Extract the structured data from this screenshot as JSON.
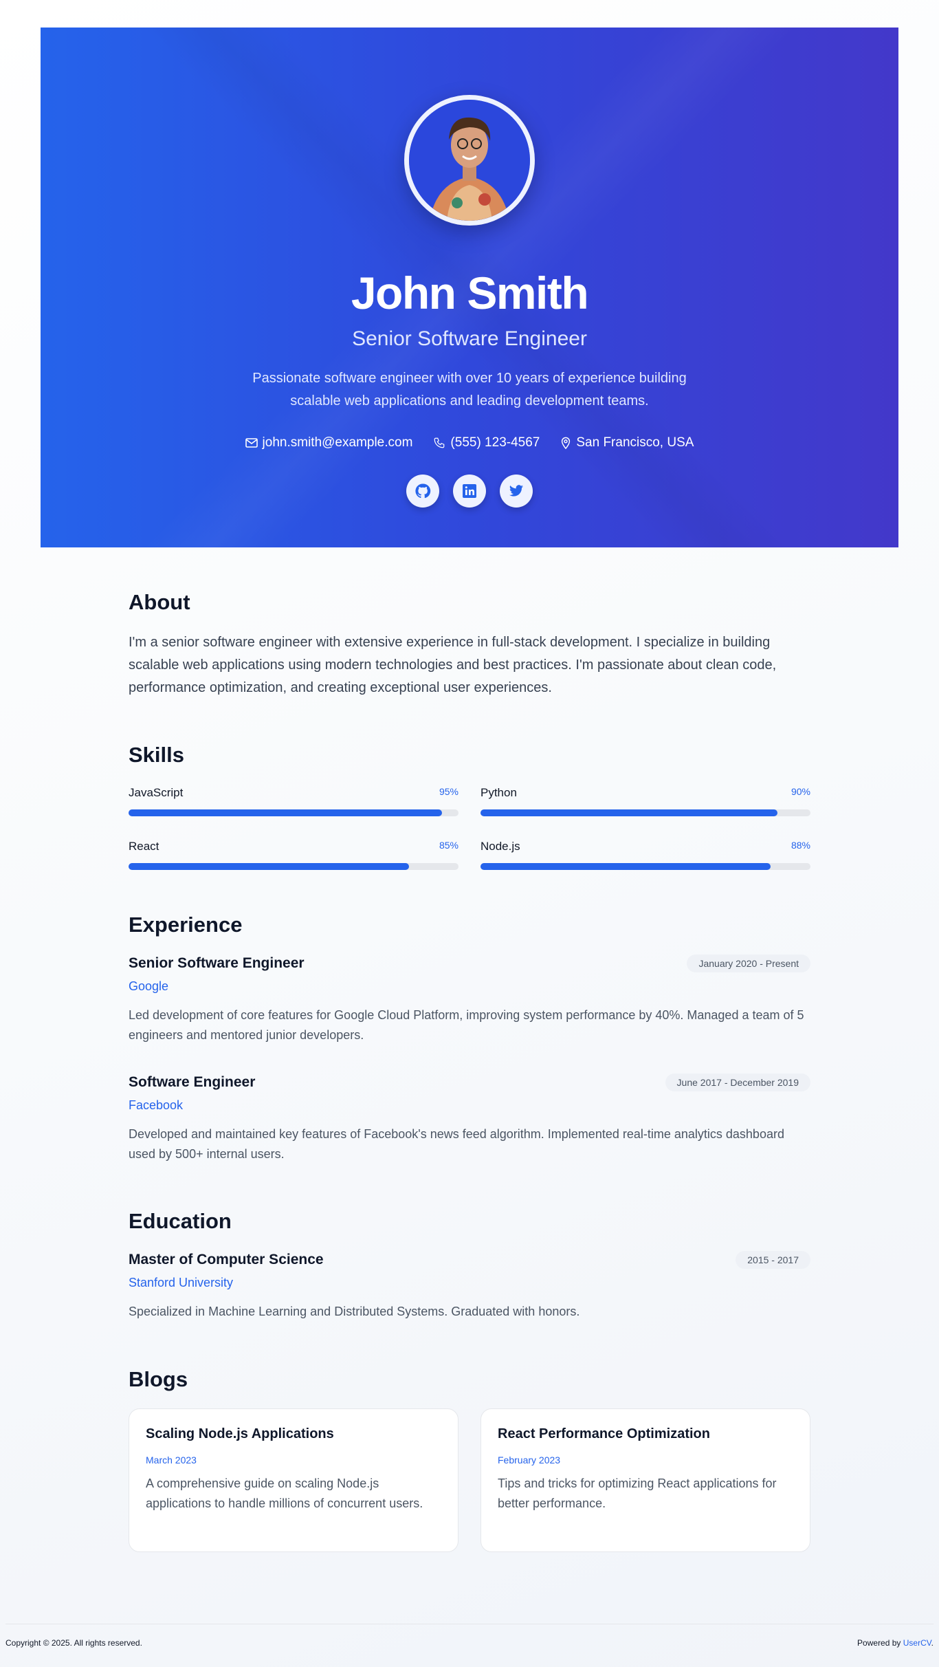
{
  "profile": {
    "name": "John Smith",
    "title": "Senior Software Engineer",
    "bio": "Passionate software engineer with over 10 years of experience building scalable web applications and leading development teams.",
    "email": "john.smith@example.com",
    "phone": "(555) 123-4567",
    "location": "San Francisco, USA",
    "socials": [
      "github-icon",
      "linkedin-icon",
      "twitter-icon"
    ]
  },
  "about": {
    "heading": "About",
    "text": "I'm a senior software engineer with extensive experience in full-stack development. I specialize in building scalable web applications using modern technologies and best practices. I'm passionate about clean code, performance optimization, and creating exceptional user experiences."
  },
  "skills": {
    "heading": "Skills",
    "items": [
      {
        "name": "JavaScript",
        "pct": "95%",
        "level": 95
      },
      {
        "name": "Python",
        "pct": "90%",
        "level": 90
      },
      {
        "name": "React",
        "pct": "85%",
        "level": 85
      },
      {
        "name": "Node.js",
        "pct": "88%",
        "level": 88
      }
    ]
  },
  "experience": {
    "heading": "Experience",
    "items": [
      {
        "role": "Senior Software Engineer",
        "company": "Google",
        "date": "January 2020 - Present",
        "desc": "Led development of core features for Google Cloud Platform, improving system performance by 40%. Managed a team of 5 engineers and mentored junior developers."
      },
      {
        "role": "Software Engineer",
        "company": "Facebook",
        "date": "June 2017 - December 2019",
        "desc": "Developed and maintained key features of Facebook's news feed algorithm. Implemented real-time analytics dashboard used by 500+ internal users."
      }
    ]
  },
  "education": {
    "heading": "Education",
    "items": [
      {
        "degree": "Master of Computer Science",
        "school": "Stanford University",
        "date": "2015 - 2017",
        "desc": "Specialized in Machine Learning and Distributed Systems. Graduated with honors."
      }
    ]
  },
  "blogs": {
    "heading": "Blogs",
    "items": [
      {
        "title": "Scaling Node.js Applications",
        "date": "March 2023",
        "desc": "A comprehensive guide on scaling Node.js applications to handle millions of concurrent users."
      },
      {
        "title": "React Performance Optimization",
        "date": "February 2023",
        "desc": "Tips and tricks for optimizing React applications for better performance."
      }
    ]
  },
  "footer": {
    "copyright": "Copyright © 2025. All rights reserved.",
    "powered_prefix": "Powered by ",
    "powered_link": "UserCV",
    "powered_suffix": "."
  },
  "colors": {
    "accent": "#2563eb",
    "hero_end": "#4338ca"
  }
}
